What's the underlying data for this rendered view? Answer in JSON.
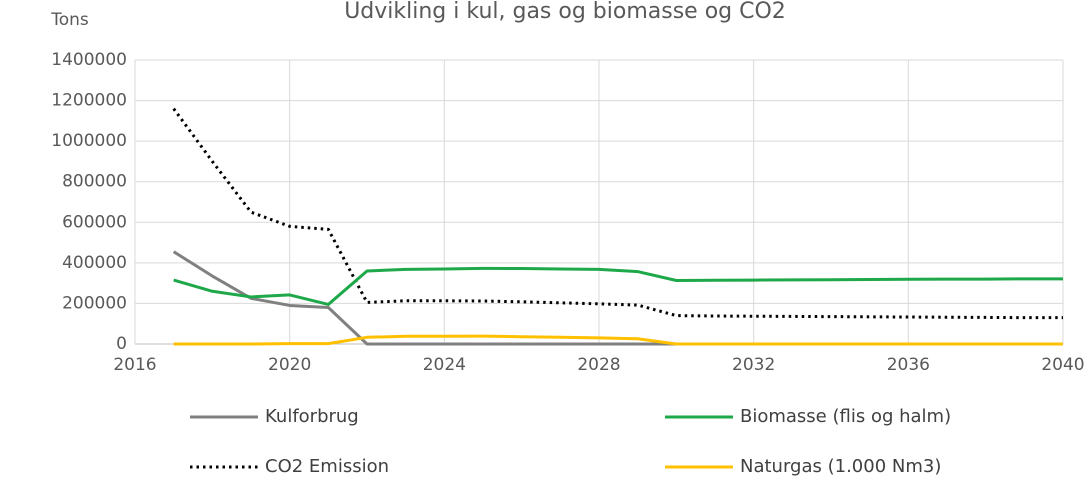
{
  "chart_data": {
    "type": "line",
    "title": "Udvikling i kul, gas og biomasse og CO2",
    "y_label": "Tons",
    "x": [
      2017,
      2018,
      2019,
      2020,
      2021,
      2022,
      2023,
      2024,
      2025,
      2026,
      2027,
      2028,
      2029,
      2030,
      2031,
      2032,
      2033,
      2034,
      2035,
      2036,
      2037,
      2038,
      2039,
      2040
    ],
    "xlim": [
      2016,
      2040
    ],
    "xticks": [
      2016,
      2020,
      2024,
      2028,
      2032,
      2036,
      2040
    ],
    "ylim": [
      0,
      1400000
    ],
    "yticks": [
      0,
      200000,
      400000,
      600000,
      800000,
      1000000,
      1200000,
      1400000
    ],
    "grid": true,
    "legend": "bottom",
    "series": [
      {
        "name": "Kulforbrug",
        "color": "#808080",
        "dash": "solid",
        "values": [
          455000,
          335000,
          225000,
          190000,
          180000,
          0,
          0,
          0,
          0,
          0,
          0,
          0,
          0,
          0,
          0,
          0,
          0,
          0,
          0,
          0,
          0,
          0,
          0,
          0
        ]
      },
      {
        "name": "Biomasse (flis og halm)",
        "color": "#1ea84a",
        "dash": "solid",
        "values": [
          315000,
          260000,
          232000,
          242000,
          195000,
          360000,
          368000,
          370000,
          373000,
          372000,
          370000,
          368000,
          357000,
          313000,
          314000,
          315000,
          316000,
          317000,
          318000,
          319000,
          320000,
          320000,
          321000,
          321000
        ]
      },
      {
        "name": "CO2 Emission",
        "color": "#000000",
        "dash": "dotted",
        "values": [
          1160000,
          900000,
          650000,
          580000,
          565000,
          205000,
          213000,
          213000,
          212000,
          208000,
          203000,
          198000,
          192000,
          140000,
          138000,
          137000,
          136000,
          135000,
          134000,
          133000,
          132000,
          131000,
          130000,
          130000
        ]
      },
      {
        "name": "Naturgas (1.000 Nm3)",
        "color": "#ffc000",
        "dash": "solid",
        "values": [
          0,
          0,
          0,
          2000,
          2000,
          33000,
          38000,
          38000,
          39000,
          36000,
          33000,
          30000,
          26000,
          0,
          0,
          0,
          0,
          0,
          0,
          0,
          0,
          0,
          0,
          0
        ]
      }
    ]
  }
}
